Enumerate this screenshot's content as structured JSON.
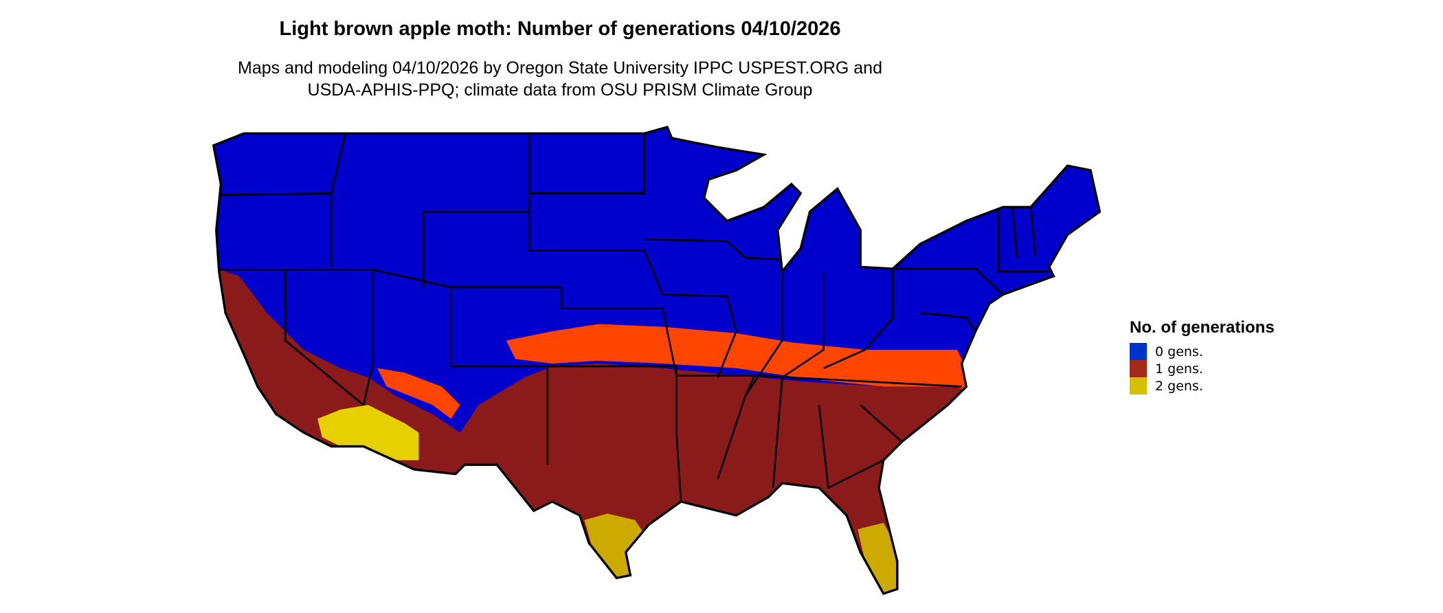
{
  "title": "Light brown apple moth: Number of generations 04/10/2026",
  "subtitle": [
    "Maps and modeling 04/10/2026 by Oregon State University IPPC USPEST.ORG and",
    "USDA-APHIS-PPQ; climate data from OSU PRISM Climate Group"
  ],
  "chart_data": {
    "type": "map",
    "region": "Contiguous United States",
    "legend": {
      "title": "No. of generations",
      "placement": "right",
      "items": [
        {
          "label": "0 gens.",
          "color": "#0033cc"
        },
        {
          "label": "1 gens.",
          "color": "#a52a1a"
        },
        {
          "label": "2 gens.",
          "color": "#d4c000"
        }
      ]
    },
    "map_colors": {
      "zero": "#0000cc",
      "one": "#8b1a1a",
      "transition": "#ff4500",
      "two": "#ffff00",
      "two_dark": "#ccaa00",
      "border": "#000000"
    }
  }
}
